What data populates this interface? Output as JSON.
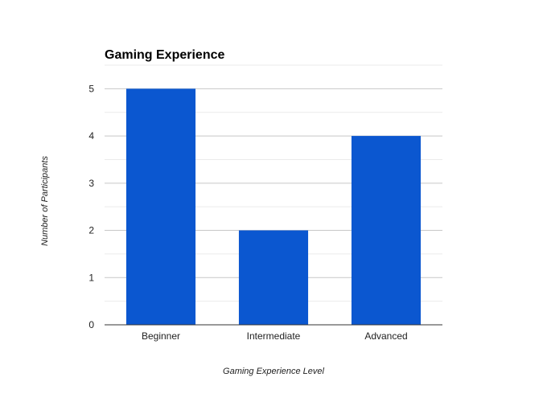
{
  "chart_data": {
    "type": "bar",
    "title": "Gaming Experience",
    "xlabel": "Gaming Experience Level",
    "ylabel": "Number of Participants",
    "categories": [
      "Beginner",
      "Intermediate",
      "Advanced"
    ],
    "values": [
      5,
      2,
      4
    ],
    "ylim": [
      0,
      5.5
    ],
    "yticks": [
      "0",
      "1",
      "2",
      "3",
      "4",
      "5"
    ],
    "grid": true,
    "legend": "none",
    "colors": {
      "bar": "#0b57d0",
      "major_grid": "#c8c8c8",
      "minor_grid": "#ebebeb",
      "axis": "#333333",
      "text": "#222222"
    }
  }
}
